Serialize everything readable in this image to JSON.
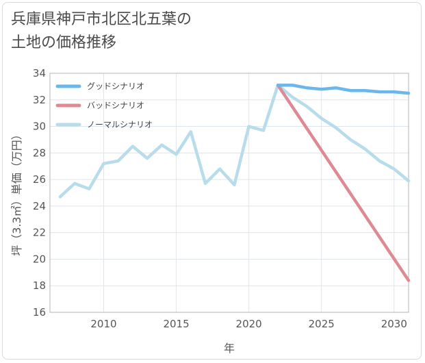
{
  "chart_data": {
    "type": "line",
    "title": "兵庫県神戸市北区北五葉の\n土地の価格推移",
    "xlabel": "年",
    "ylabel": "坪（3.3㎡）単価（万円）",
    "xlim": [
      2006.3,
      2031
    ],
    "ylim": [
      16,
      34
    ],
    "xticks": [
      2010,
      2015,
      2020,
      2025,
      2030
    ],
    "yticks": [
      16,
      18,
      20,
      22,
      24,
      26,
      28,
      30,
      32,
      34
    ],
    "grid": true,
    "legend_position": "top-left",
    "series": [
      {
        "name": "グッドシナリオ",
        "color": "#6ab7ec",
        "x": [
          2022,
          2023,
          2024,
          2025,
          2026,
          2027,
          2028,
          2029,
          2030,
          2031
        ],
        "y": [
          33.1,
          33.1,
          32.9,
          32.8,
          32.9,
          32.7,
          32.7,
          32.6,
          32.6,
          32.5
        ]
      },
      {
        "name": "バッドシナリオ",
        "color": "#dd8a94",
        "x": [
          2022,
          2031
        ],
        "y": [
          33.1,
          18.4
        ]
      },
      {
        "name": "ノーマルシナリオ",
        "color": "#b9dcea",
        "x": [
          2007,
          2008,
          2009,
          2010,
          2011,
          2012,
          2013,
          2014,
          2015,
          2016,
          2017,
          2018,
          2019,
          2020,
          2021,
          2022,
          2023,
          2024,
          2025,
          2026,
          2027,
          2028,
          2029,
          2030,
          2031
        ],
        "y": [
          24.7,
          25.7,
          25.3,
          27.2,
          27.4,
          28.5,
          27.6,
          28.6,
          27.9,
          29.6,
          25.7,
          26.8,
          25.6,
          30.0,
          29.7,
          33.1,
          32.2,
          31.5,
          30.6,
          29.9,
          29.0,
          28.3,
          27.4,
          26.8,
          25.9
        ]
      }
    ]
  }
}
